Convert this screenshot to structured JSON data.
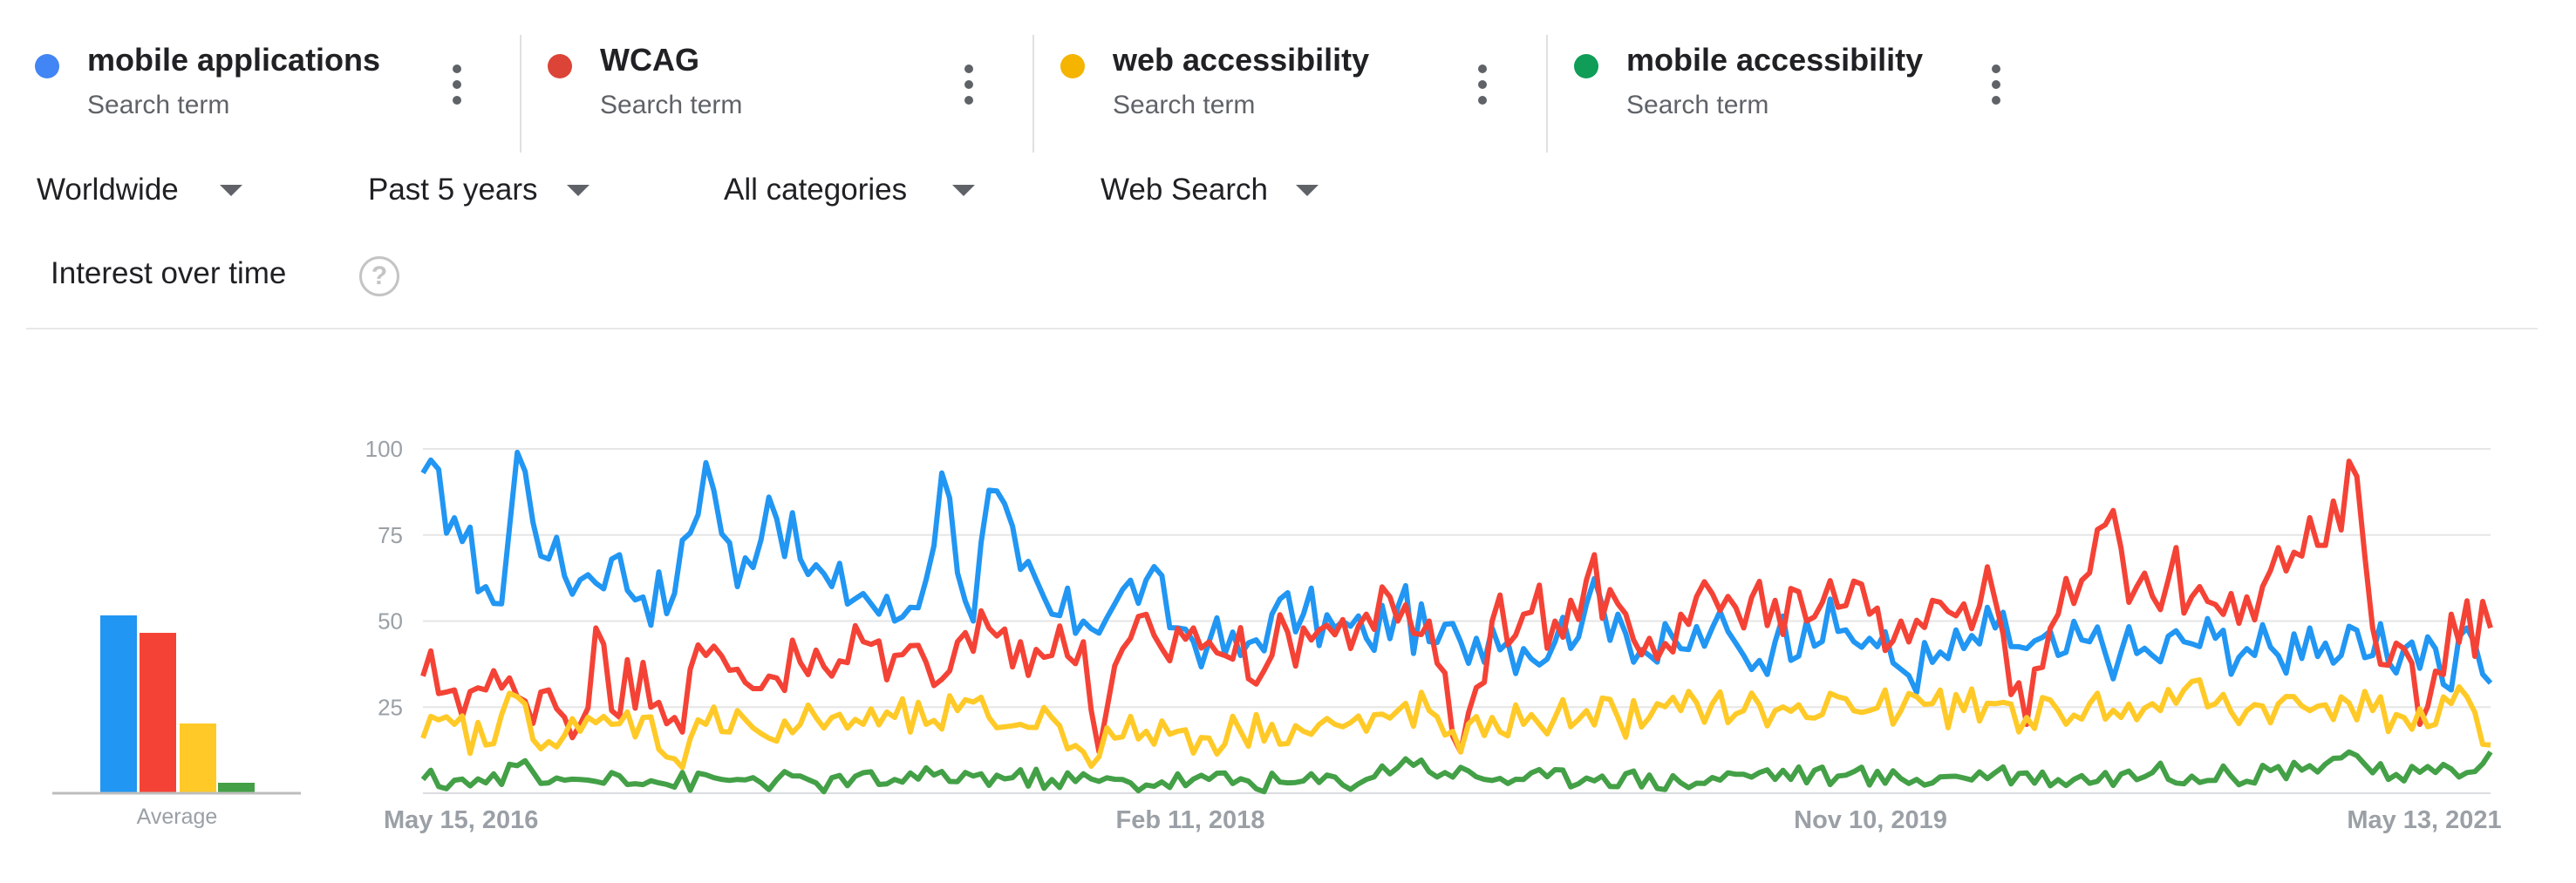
{
  "terms": [
    {
      "name": "mobile applications",
      "sub": "Search term",
      "color": "#4285f4"
    },
    {
      "name": "WCAG",
      "sub": "Search term",
      "color": "#db4437"
    },
    {
      "name": "web accessibility",
      "sub": "Search term",
      "color": "#f4b400"
    },
    {
      "name": "mobile accessibility",
      "sub": "Search term",
      "color": "#0f9d58"
    }
  ],
  "filters": {
    "region": "Worldwide",
    "time": "Past 5 years",
    "category": "All categories",
    "search_type": "Web Search"
  },
  "section": {
    "title": "Interest over time"
  },
  "icons": {
    "help": "help-circle-icon",
    "menu": "more-vert-icon",
    "dropdown": "caret-down-icon"
  },
  "chart_data": {
    "type": "line",
    "title": "",
    "xlabel": "",
    "ylabel": "",
    "ylim": [
      0,
      100
    ],
    "yticks": [
      25,
      50,
      75,
      100
    ],
    "x_tick_labels": [
      "May 15, 2016",
      "Feb 11, 2018",
      "Nov 10, 2019",
      "May 13, 2021"
    ],
    "x_range": [
      "2016-05-15",
      "2021-05-13"
    ],
    "x_unit": "week",
    "grid": true,
    "legend": "top",
    "average_label": "Average",
    "series": [
      {
        "name": "mobile applications",
        "color": "#2196f3",
        "average": 51,
        "anchors": [
          [
            0,
            93
          ],
          [
            4,
            80
          ],
          [
            8,
            60
          ],
          [
            10,
            55
          ],
          [
            12,
            99
          ],
          [
            16,
            68
          ],
          [
            20,
            62
          ],
          [
            24,
            68
          ],
          [
            28,
            57
          ],
          [
            32,
            58
          ],
          [
            36,
            96
          ],
          [
            40,
            60
          ],
          [
            44,
            86
          ],
          [
            48,
            68
          ],
          [
            52,
            60
          ],
          [
            56,
            58
          ],
          [
            60,
            50
          ],
          [
            64,
            62
          ],
          [
            66,
            93
          ],
          [
            70,
            50
          ],
          [
            72,
            88
          ],
          [
            76,
            65
          ],
          [
            80,
            52
          ],
          [
            84,
            50
          ],
          [
            88,
            55
          ],
          [
            92,
            62
          ],
          [
            96,
            48
          ],
          [
            100,
            44
          ],
          [
            104,
            40
          ],
          [
            108,
            52
          ],
          [
            112,
            52
          ],
          [
            116,
            48
          ],
          [
            120,
            45
          ],
          [
            124,
            54
          ],
          [
            128,
            44
          ],
          [
            132,
            44
          ],
          [
            136,
            48
          ],
          [
            140,
            42
          ],
          [
            144,
            44
          ],
          [
            148,
            55
          ],
          [
            152,
            52
          ],
          [
            156,
            40
          ],
          [
            160,
            42
          ],
          [
            164,
            48
          ],
          [
            168,
            40
          ],
          [
            172,
            44
          ],
          [
            176,
            50
          ],
          [
            180,
            47
          ],
          [
            184,
            45
          ],
          [
            188,
            36
          ],
          [
            192,
            38
          ],
          [
            196,
            42
          ],
          [
            200,
            48
          ],
          [
            204,
            42
          ],
          [
            208,
            40
          ],
          [
            212,
            44
          ],
          [
            216,
            41
          ],
          [
            220,
            40
          ],
          [
            224,
            44
          ],
          [
            228,
            45
          ],
          [
            232,
            42
          ],
          [
            236,
            40
          ],
          [
            240,
            48
          ],
          [
            244,
            40
          ],
          [
            248,
            40
          ],
          [
            252,
            42
          ],
          [
            256,
            42
          ],
          [
            258,
            30
          ],
          [
            260,
            48
          ],
          [
            263,
            32
          ]
        ],
        "amplitude": 9
      },
      {
        "name": "WCAG",
        "color": "#f44336",
        "average": 46,
        "anchors": [
          [
            0,
            34
          ],
          [
            4,
            30
          ],
          [
            8,
            30
          ],
          [
            12,
            28
          ],
          [
            16,
            30
          ],
          [
            20,
            20
          ],
          [
            22,
            48
          ],
          [
            24,
            24
          ],
          [
            28,
            38
          ],
          [
            32,
            22
          ],
          [
            36,
            40
          ],
          [
            40,
            36
          ],
          [
            44,
            34
          ],
          [
            48,
            38
          ],
          [
            52,
            34
          ],
          [
            56,
            44
          ],
          [
            60,
            40
          ],
          [
            64,
            38
          ],
          [
            68,
            44
          ],
          [
            72,
            48
          ],
          [
            76,
            44
          ],
          [
            80,
            40
          ],
          [
            84,
            44
          ],
          [
            86,
            12
          ],
          [
            90,
            45
          ],
          [
            94,
            42
          ],
          [
            98,
            48
          ],
          [
            102,
            40
          ],
          [
            108,
            40
          ],
          [
            112,
            48
          ],
          [
            116,
            46
          ],
          [
            120,
            52
          ],
          [
            124,
            50
          ],
          [
            128,
            50
          ],
          [
            132,
            12
          ],
          [
            136,
            50
          ],
          [
            140,
            52
          ],
          [
            144,
            50
          ],
          [
            148,
            62
          ],
          [
            152,
            55
          ],
          [
            156,
            45
          ],
          [
            160,
            52
          ],
          [
            164,
            58
          ],
          [
            168,
            48
          ],
          [
            172,
            56
          ],
          [
            176,
            50
          ],
          [
            180,
            54
          ],
          [
            184,
            52
          ],
          [
            188,
            50
          ],
          [
            192,
            56
          ],
          [
            196,
            55
          ],
          [
            200,
            56
          ],
          [
            204,
            20
          ],
          [
            208,
            52
          ],
          [
            212,
            64
          ],
          [
            214,
            78
          ],
          [
            218,
            60
          ],
          [
            222,
            62
          ],
          [
            226,
            60
          ],
          [
            230,
            58
          ],
          [
            234,
            60
          ],
          [
            238,
            70
          ],
          [
            242,
            72
          ],
          [
            246,
            92
          ],
          [
            248,
            48
          ],
          [
            252,
            42
          ],
          [
            254,
            20
          ],
          [
            258,
            52
          ],
          [
            263,
            48
          ]
        ],
        "amplitude": 10
      },
      {
        "name": "web accessibility",
        "color": "#ffca28",
        "average": 20,
        "anchors": [
          [
            0,
            16
          ],
          [
            4,
            20
          ],
          [
            8,
            14
          ],
          [
            12,
            28
          ],
          [
            16,
            15
          ],
          [
            20,
            18
          ],
          [
            24,
            20
          ],
          [
            28,
            22
          ],
          [
            32,
            10
          ],
          [
            36,
            20
          ],
          [
            40,
            24
          ],
          [
            44,
            16
          ],
          [
            48,
            20
          ],
          [
            52,
            22
          ],
          [
            56,
            20
          ],
          [
            60,
            22
          ],
          [
            64,
            20
          ],
          [
            68,
            24
          ],
          [
            72,
            22
          ],
          [
            76,
            20
          ],
          [
            80,
            22
          ],
          [
            84,
            12
          ],
          [
            88,
            16
          ],
          [
            92,
            18
          ],
          [
            96,
            18
          ],
          [
            100,
            16
          ],
          [
            104,
            18
          ],
          [
            108,
            20
          ],
          [
            112,
            18
          ],
          [
            116,
            20
          ],
          [
            120,
            18
          ],
          [
            124,
            24
          ],
          [
            128,
            24
          ],
          [
            132,
            12
          ],
          [
            136,
            22
          ],
          [
            140,
            20
          ],
          [
            144,
            22
          ],
          [
            148,
            24
          ],
          [
            152,
            22
          ],
          [
            156,
            22
          ],
          [
            160,
            24
          ],
          [
            164,
            26
          ],
          [
            168,
            24
          ],
          [
            172,
            24
          ],
          [
            176,
            22
          ],
          [
            180,
            28
          ],
          [
            184,
            24
          ],
          [
            188,
            24
          ],
          [
            192,
            26
          ],
          [
            196,
            24
          ],
          [
            200,
            26
          ],
          [
            204,
            22
          ],
          [
            208,
            24
          ],
          [
            212,
            26
          ],
          [
            216,
            22
          ],
          [
            220,
            26
          ],
          [
            224,
            30
          ],
          [
            228,
            26
          ],
          [
            232,
            24
          ],
          [
            236,
            26
          ],
          [
            240,
            24
          ],
          [
            244,
            28
          ],
          [
            248,
            24
          ],
          [
            252,
            22
          ],
          [
            256,
            20
          ],
          [
            260,
            28
          ],
          [
            263,
            14
          ]
        ],
        "amplitude": 6
      },
      {
        "name": "mobile accessibility",
        "color": "#43a047",
        "average": 3,
        "anchors": [
          [
            0,
            4
          ],
          [
            8,
            3
          ],
          [
            12,
            8
          ],
          [
            16,
            3
          ],
          [
            20,
            4
          ],
          [
            24,
            6
          ],
          [
            30,
            3
          ],
          [
            40,
            4
          ],
          [
            50,
            3
          ],
          [
            60,
            4
          ],
          [
            70,
            5
          ],
          [
            80,
            4
          ],
          [
            90,
            3
          ],
          [
            100,
            4
          ],
          [
            110,
            3
          ],
          [
            120,
            4
          ],
          [
            125,
            10
          ],
          [
            130,
            6
          ],
          [
            140,
            4
          ],
          [
            150,
            5
          ],
          [
            160,
            3
          ],
          [
            170,
            6
          ],
          [
            180,
            5
          ],
          [
            190,
            4
          ],
          [
            200,
            6
          ],
          [
            210,
            4
          ],
          [
            220,
            6
          ],
          [
            230,
            5
          ],
          [
            240,
            8
          ],
          [
            245,
            12
          ],
          [
            250,
            4
          ],
          [
            256,
            6
          ],
          [
            260,
            6
          ],
          [
            263,
            12
          ]
        ],
        "amplitude": 3
      }
    ]
  }
}
